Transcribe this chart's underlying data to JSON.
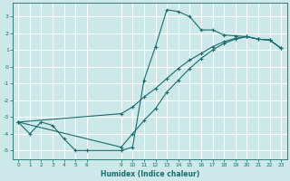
{
  "xlabel": "Humidex (Indice chaleur)",
  "xlim": [
    -0.5,
    23.5
  ],
  "ylim": [
    -5.5,
    3.8
  ],
  "xticks": [
    0,
    1,
    2,
    3,
    4,
    5,
    6,
    9,
    10,
    11,
    12,
    13,
    14,
    15,
    16,
    17,
    18,
    19,
    20,
    21,
    22,
    23
  ],
  "yticks": [
    -5,
    -4,
    -3,
    -2,
    -1,
    0,
    1,
    2,
    3
  ],
  "bg_color": "#cce8e8",
  "grid_color": "#ffffff",
  "line_color": "#1a6b6b",
  "curves": [
    {
      "x": [
        0,
        1,
        2,
        3,
        4,
        5,
        6,
        9,
        10,
        11,
        12,
        13,
        14,
        15,
        16,
        17,
        18,
        19,
        20,
        21,
        22,
        23
      ],
      "y": [
        -3.3,
        -4.0,
        -3.3,
        -3.5,
        -4.3,
        -5.0,
        -5.0,
        -5.0,
        -4.8,
        -0.8,
        1.2,
        3.4,
        3.3,
        3.0,
        2.2,
        2.2,
        1.9,
        1.85,
        1.8,
        1.65,
        1.6,
        1.1
      ]
    },
    {
      "x": [
        0,
        9,
        10,
        11,
        12,
        13,
        14,
        15,
        16,
        17,
        18,
        19,
        20,
        21,
        22,
        23
      ],
      "y": [
        -3.3,
        -2.8,
        -2.4,
        -1.8,
        -1.3,
        -0.7,
        -0.1,
        0.4,
        0.8,
        1.2,
        1.5,
        1.7,
        1.8,
        1.65,
        1.6,
        1.1
      ]
    },
    {
      "x": [
        0,
        9,
        10,
        11,
        12,
        13,
        14,
        15,
        16,
        17,
        18,
        19,
        20,
        21,
        22,
        23
      ],
      "y": [
        -3.3,
        -4.8,
        -4.0,
        -3.2,
        -2.5,
        -1.5,
        -0.8,
        -0.1,
        0.5,
        1.0,
        1.4,
        1.65,
        1.8,
        1.65,
        1.6,
        1.1
      ]
    }
  ]
}
